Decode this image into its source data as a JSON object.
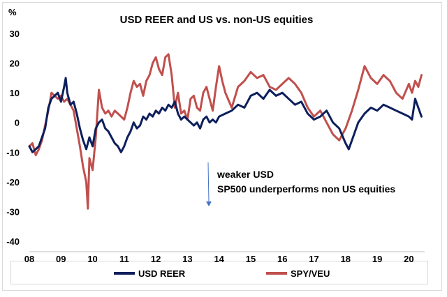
{
  "chart_data": {
    "type": "line",
    "title": "USD REER and US vs. non-US equities",
    "ylabel": "%",
    "xlabel": "",
    "ylim": [
      -40,
      30
    ],
    "yticks": [
      30,
      20,
      10,
      0,
      -10,
      -20,
      -30,
      -40
    ],
    "xlim": [
      2008,
      2020.5
    ],
    "xticks": [
      {
        "v": 2008,
        "label": "08"
      },
      {
        "v": 2009,
        "label": "09"
      },
      {
        "v": 2010,
        "label": "10"
      },
      {
        "v": 2011,
        "label": "11"
      },
      {
        "v": 2012,
        "label": "12"
      },
      {
        "v": 2013,
        "label": "13"
      },
      {
        "v": 2014,
        "label": "14"
      },
      {
        "v": 2015,
        "label": "15"
      },
      {
        "v": 2016,
        "label": "16"
      },
      {
        "v": 2017,
        "label": "17"
      },
      {
        "v": 2018,
        "label": "18"
      },
      {
        "v": 2019,
        "label": "19"
      },
      {
        "v": 2020,
        "label": "20"
      }
    ],
    "legend_position": "bottom",
    "grid": false,
    "annotations": [
      "weaker USD",
      "SP500 underperforms non US equities"
    ],
    "series": [
      {
        "name": "USD REER",
        "color": "#0d1f5c",
        "x": [
          2008.0,
          2008.1,
          2008.2,
          2008.3,
          2008.4,
          2008.5,
          2008.6,
          2008.7,
          2008.8,
          2008.9,
          2009.0,
          2009.1,
          2009.15,
          2009.2,
          2009.3,
          2009.4,
          2009.5,
          2009.6,
          2009.7,
          2009.8,
          2009.9,
          2010.0,
          2010.1,
          2010.2,
          2010.3,
          2010.4,
          2010.5,
          2010.6,
          2010.7,
          2010.8,
          2010.9,
          2011.0,
          2011.1,
          2011.2,
          2011.3,
          2011.4,
          2011.5,
          2011.6,
          2011.7,
          2011.8,
          2011.9,
          2012.0,
          2012.1,
          2012.2,
          2012.3,
          2012.4,
          2012.5,
          2012.6,
          2012.7,
          2012.8,
          2012.9,
          2013.0,
          2013.1,
          2013.2,
          2013.3,
          2013.4,
          2013.5,
          2013.6,
          2013.7,
          2013.8,
          2013.9,
          2014.0,
          2014.2,
          2014.4,
          2014.6,
          2014.8,
          2015.0,
          2015.2,
          2015.4,
          2015.6,
          2015.8,
          2016.0,
          2016.2,
          2016.4,
          2016.6,
          2016.8,
          2017.0,
          2017.2,
          2017.4,
          2017.6,
          2017.8,
          2018.0,
          2018.1,
          2018.2,
          2018.4,
          2018.6,
          2018.8,
          2019.0,
          2019.2,
          2019.4,
          2019.6,
          2019.8,
          2020.0,
          2020.1,
          2020.2,
          2020.3,
          2020.4
        ],
        "y": [
          -8,
          -10,
          -9,
          -8,
          -5,
          -2,
          5,
          8,
          9,
          10,
          7,
          12,
          15,
          10,
          6,
          7,
          3,
          -2,
          -6,
          -9,
          -5,
          -8,
          -2,
          0,
          1,
          -2,
          -3,
          -5,
          -7,
          -8,
          -10,
          -8,
          -5,
          -3,
          0,
          -2,
          -1,
          2,
          1,
          3,
          2,
          4,
          3,
          5,
          4,
          6,
          5,
          7,
          3,
          1,
          2,
          1,
          0,
          -1,
          0,
          -2,
          1,
          2,
          0,
          1,
          0,
          2,
          3,
          4,
          6,
          5,
          9,
          10,
          8,
          11,
          9,
          10,
          8,
          6,
          7,
          3,
          1,
          2,
          4,
          0,
          -2,
          -7,
          -9,
          -6,
          0,
          3,
          5,
          4,
          6,
          5,
          4,
          3,
          2,
          1,
          8,
          5,
          2
        ]
      },
      {
        "name": "SPY/VEU",
        "color": "#c0504d",
        "x": [
          2008.0,
          2008.1,
          2008.2,
          2008.3,
          2008.4,
          2008.5,
          2008.6,
          2008.7,
          2008.8,
          2008.9,
          2009.0,
          2009.1,
          2009.2,
          2009.3,
          2009.4,
          2009.5,
          2009.6,
          2009.7,
          2009.8,
          2009.85,
          2009.9,
          2010.0,
          2010.1,
          2010.2,
          2010.3,
          2010.4,
          2010.5,
          2010.6,
          2010.7,
          2010.8,
          2010.9,
          2011.0,
          2011.1,
          2011.2,
          2011.3,
          2011.4,
          2011.5,
          2011.6,
          2011.7,
          2011.8,
          2011.9,
          2012.0,
          2012.1,
          2012.2,
          2012.3,
          2012.4,
          2012.5,
          2012.6,
          2012.7,
          2012.8,
          2012.9,
          2013.0,
          2013.1,
          2013.2,
          2013.3,
          2013.4,
          2013.5,
          2013.6,
          2013.7,
          2013.8,
          2013.9,
          2014.0,
          2014.1,
          2014.2,
          2014.4,
          2014.6,
          2014.8,
          2015.0,
          2015.2,
          2015.4,
          2015.6,
          2015.8,
          2016.0,
          2016.2,
          2016.4,
          2016.6,
          2016.8,
          2017.0,
          2017.2,
          2017.4,
          2017.6,
          2017.8,
          2018.0,
          2018.2,
          2018.4,
          2018.6,
          2018.7,
          2018.8,
          2019.0,
          2019.2,
          2019.4,
          2019.6,
          2019.8,
          2020.0,
          2020.1,
          2020.2,
          2020.3,
          2020.4
        ],
        "y": [
          -8,
          -7,
          -11,
          -9,
          -6,
          -1,
          4,
          10,
          9,
          8,
          9,
          7,
          8,
          6,
          4,
          -2,
          -8,
          -15,
          -20,
          -29,
          -12,
          -16,
          -5,
          11,
          5,
          3,
          4,
          2,
          4,
          3,
          2,
          1,
          5,
          10,
          14,
          12,
          13,
          9,
          14,
          16,
          20,
          22,
          18,
          16,
          22,
          23,
          16,
          5,
          10,
          3,
          4,
          1,
          8,
          9,
          5,
          4,
          10,
          12,
          8,
          4,
          12,
          19,
          14,
          10,
          5,
          12,
          14,
          17,
          15,
          16,
          12,
          11,
          13,
          15,
          13,
          10,
          5,
          2,
          4,
          0,
          -4,
          -6,
          -2,
          4,
          11,
          19,
          17,
          15,
          13,
          16,
          14,
          10,
          8,
          13,
          10,
          14,
          12,
          16
        ]
      }
    ]
  }
}
